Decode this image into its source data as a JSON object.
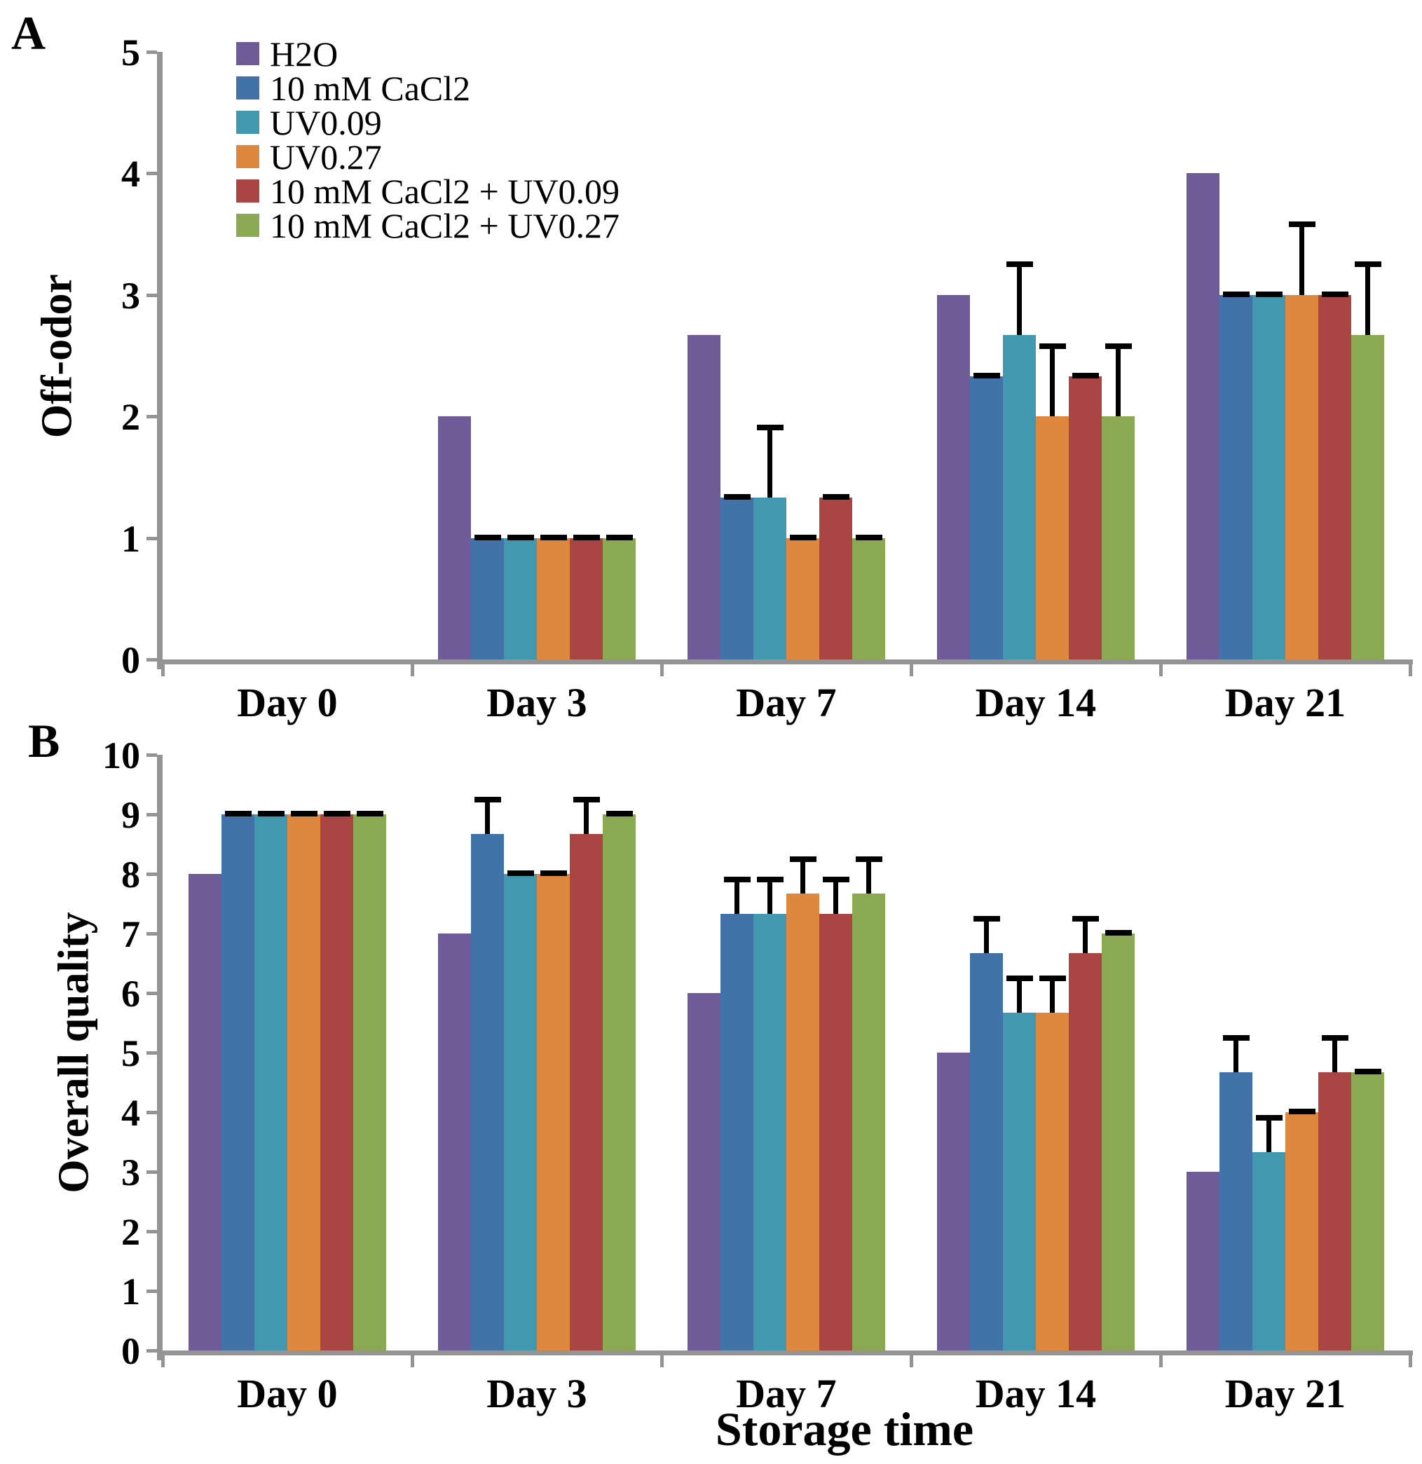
{
  "figure": {
    "background": "#ffffff",
    "axis_color": "#949494",
    "error_bar_color": "#000000"
  },
  "chart_data": [
    {
      "type": "bar",
      "panel_letter": "A",
      "title": "",
      "ylabel": "Off-odor",
      "xlabel": "",
      "ylim": [
        0,
        5
      ],
      "ytick_step": 1,
      "grid": false,
      "legend_position": "top-left-inside",
      "categories": [
        "Day 0",
        "Day 3",
        "Day 7",
        "Day 14",
        "Day 21"
      ],
      "series": [
        {
          "name": "H2O",
          "color": "#6E5B98",
          "values": [
            0,
            2,
            2.67,
            3,
            4
          ],
          "errors": [
            null,
            null,
            null,
            null,
            null
          ]
        },
        {
          "name": "10 mM CaCl2",
          "color": "#4173A8",
          "values": [
            0,
            1,
            1.33,
            2.33,
            3
          ],
          "errors": [
            null,
            0,
            0,
            0,
            0
          ]
        },
        {
          "name": "UV0.09",
          "color": "#4298AE",
          "values": [
            0,
            1,
            1.33,
            2.67,
            3
          ],
          "errors": [
            null,
            0,
            0.58,
            0.58,
            0
          ]
        },
        {
          "name": "UV0.27",
          "color": "#DE873E",
          "values": [
            0,
            1,
            1,
            2,
            3
          ],
          "errors": [
            null,
            0,
            0,
            0.58,
            0.58
          ]
        },
        {
          "name": "10 mM CaCl2 + UV0.09",
          "color": "#A94542",
          "values": [
            0,
            1,
            1.33,
            2.33,
            3
          ],
          "errors": [
            null,
            0,
            0,
            0,
            0
          ]
        },
        {
          "name": "10 mM CaCl2 + UV0.27",
          "color": "#8BA853",
          "values": [
            0,
            1,
            1,
            2,
            2.67
          ],
          "errors": [
            null,
            0,
            0,
            0.58,
            0.58
          ]
        }
      ]
    },
    {
      "type": "bar",
      "panel_letter": "B",
      "title": "",
      "ylabel": "Overall quality",
      "xlabel": "Storage time",
      "ylim": [
        0,
        10
      ],
      "ytick_step": 1,
      "grid": false,
      "legend_position": "none",
      "categories": [
        "Day 0",
        "Day 3",
        "Day 7",
        "Day 14",
        "Day 21"
      ],
      "series": [
        {
          "name": "H2O",
          "color": "#6E5B98",
          "values": [
            8,
            7,
            6,
            5,
            3
          ],
          "errors": [
            null,
            null,
            null,
            null,
            null
          ]
        },
        {
          "name": "10 mM CaCl2",
          "color": "#4173A8",
          "values": [
            9,
            8.67,
            7.33,
            6.67,
            4.67
          ],
          "errors": [
            0,
            0.58,
            0.58,
            0.58,
            0.58
          ]
        },
        {
          "name": "UV0.09",
          "color": "#4298AE",
          "values": [
            9,
            8,
            7.33,
            5.67,
            3.33
          ],
          "errors": [
            0,
            0,
            0.58,
            0.58,
            0.58
          ]
        },
        {
          "name": "UV0.27",
          "color": "#DE873E",
          "values": [
            9,
            8,
            7.67,
            5.67,
            4
          ],
          "errors": [
            0,
            0,
            0.58,
            0.58,
            0
          ]
        },
        {
          "name": "10 mM CaCl2 + UV0.09",
          "color": "#A94542",
          "values": [
            9,
            8.67,
            7.33,
            6.67,
            4.67
          ],
          "errors": [
            0,
            0.58,
            0.58,
            0.58,
            0.58
          ]
        },
        {
          "name": "10 mM CaCl2 + UV0.27",
          "color": "#8BA853",
          "values": [
            9,
            9,
            7.67,
            7,
            4.67
          ],
          "errors": [
            0,
            0,
            0.58,
            0,
            0
          ]
        }
      ]
    }
  ]
}
